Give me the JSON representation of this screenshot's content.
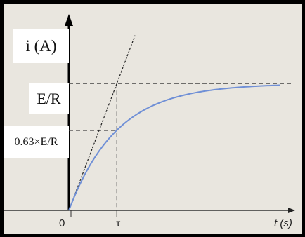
{
  "chart_data": {
    "type": "line",
    "title": "",
    "xlabel": "t (s)",
    "ylabel": "i (A)",
    "x_ticks": [
      "0",
      "τ"
    ],
    "y_levels": [
      {
        "label": "E/R",
        "fraction": 1.0
      },
      {
        "label": "0.63×E/R",
        "fraction": 0.63
      }
    ],
    "xlim_tau": [
      0,
      4.4
    ],
    "ylim_fraction": [
      0,
      1.45
    ],
    "tau": 1,
    "series": [
      {
        "function": "i = (E/R)(1 - e^(-t/τ))",
        "color": "#6f8fd6"
      }
    ],
    "asymptote": {
      "fraction": 1.0,
      "style": "dashed"
    },
    "tangent_at_origin": {
      "slope_fraction_per_tau": 1.0,
      "style": "dashed"
    },
    "grid": false,
    "colors": {
      "curve": "#6f8fd6",
      "axes": "#111111",
      "guides": "#444444"
    }
  },
  "labels": {
    "y_axis": "i (A)",
    "level_full": "E/R",
    "level_63": "0.63×E/R",
    "origin": "0",
    "tau": "τ",
    "x_axis": "t (s)"
  }
}
